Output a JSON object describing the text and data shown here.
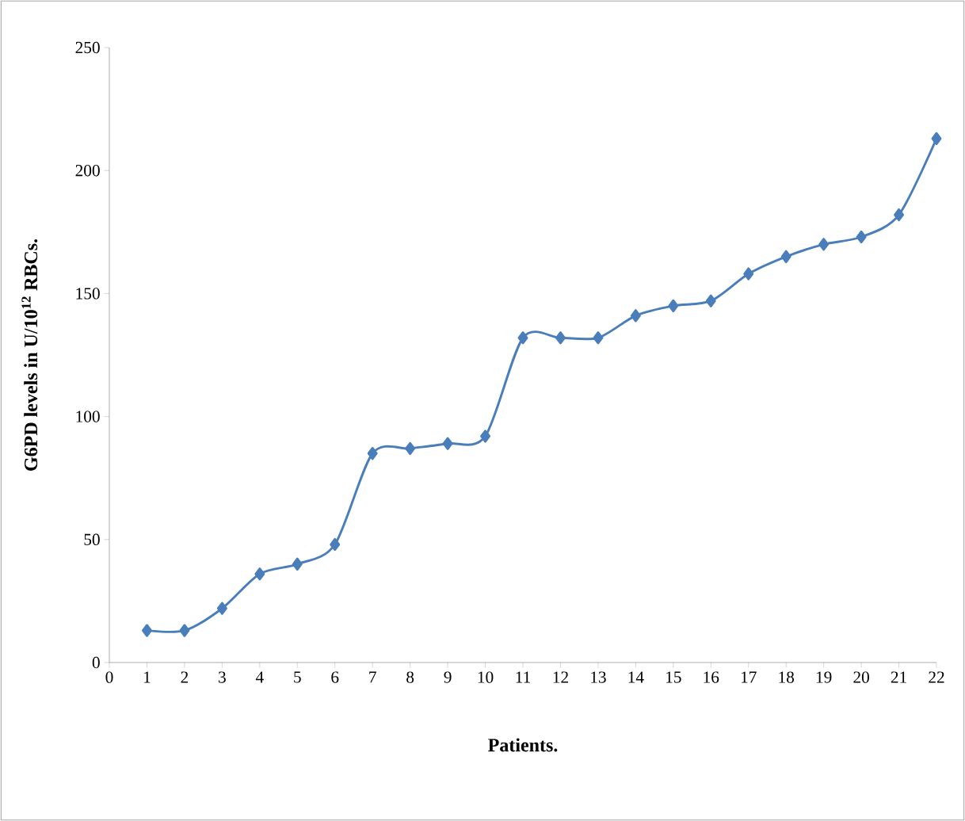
{
  "chart_data": {
    "type": "line",
    "xlabel": "Patients.",
    "ylabel": "G6PD levels in U/10$^{12}$ RBCs.",
    "x": [
      1,
      2,
      3,
      4,
      5,
      6,
      7,
      8,
      9,
      10,
      11,
      12,
      13,
      14,
      15,
      16,
      17,
      18,
      19,
      20,
      21,
      22
    ],
    "series": [
      {
        "color": "#4a7ebb",
        "values": [
          13,
          13,
          22,
          36,
          40,
          48,
          85,
          87,
          89,
          92,
          132,
          132,
          132,
          141,
          145,
          147,
          158,
          165,
          170,
          173,
          182,
          213
        ]
      }
    ],
    "xlim": [
      0,
      22
    ],
    "xticks": [
      0,
      1,
      2,
      3,
      4,
      5,
      6,
      7,
      8,
      9,
      10,
      11,
      12,
      13,
      14,
      15,
      16,
      17,
      18,
      19,
      20,
      21,
      22
    ],
    "ylim": [
      0,
      250
    ],
    "yticks": [
      0,
      50,
      100,
      150,
      200,
      250
    ],
    "grid": false,
    "marker": "diamond",
    "line_style": "solid"
  }
}
